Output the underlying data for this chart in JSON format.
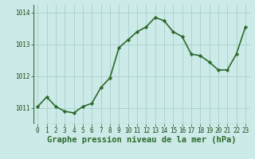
{
  "x": [
    0,
    1,
    2,
    3,
    4,
    5,
    6,
    7,
    8,
    9,
    10,
    11,
    12,
    13,
    14,
    15,
    16,
    17,
    18,
    19,
    20,
    21,
    22,
    23
  ],
  "y": [
    1011.05,
    1011.35,
    1011.05,
    1010.9,
    1010.85,
    1011.05,
    1011.15,
    1011.65,
    1011.95,
    1012.9,
    1013.15,
    1013.4,
    1013.55,
    1013.85,
    1013.75,
    1013.4,
    1013.25,
    1012.7,
    1012.65,
    1012.45,
    1012.2,
    1012.2,
    1012.7,
    1013.55
  ],
  "line_color": "#2d6a2d",
  "marker": "D",
  "marker_size": 2.2,
  "background_color": "#cceae7",
  "grid_color": "#aad4d0",
  "xlabel": "Graphe pression niveau de la mer (hPa)",
  "xlabel_fontsize": 7.5,
  "ylim": [
    1010.5,
    1014.25
  ],
  "yticks": [
    1011,
    1012,
    1013,
    1014
  ],
  "xticks": [
    0,
    1,
    2,
    3,
    4,
    5,
    6,
    7,
    8,
    9,
    10,
    11,
    12,
    13,
    14,
    15,
    16,
    17,
    18,
    19,
    20,
    21,
    22,
    23
  ],
  "tick_fontsize": 5.5,
  "line_width": 1.2
}
